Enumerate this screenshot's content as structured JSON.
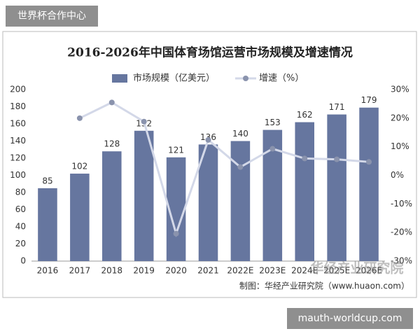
{
  "site_badge": "世界杯合作中心",
  "site_footer": "mauth-worldcup.com",
  "watermark": "华经产业研究院",
  "chart_data": {
    "type": "bar",
    "title": "2016-2026年中国体育场馆运营市场规模及增速情况",
    "source": "制图：华经产业研究院（www.huaon.com）",
    "categories": [
      "2016",
      "2017",
      "2018",
      "2019",
      "2020",
      "2021",
      "2022E",
      "2023E",
      "2024E",
      "2025E",
      "2026E"
    ],
    "series": [
      {
        "name": "市场规模（亿美元）",
        "type": "bar",
        "color": "#66769f",
        "values": [
          85,
          102,
          128,
          152,
          121,
          136,
          140,
          153,
          162,
          171,
          179
        ]
      },
      {
        "name": "增速（%）",
        "type": "line",
        "axis": "y2",
        "color": "#d3d8e8",
        "marker_color": "#8a93ad",
        "values": [
          null,
          20,
          25.5,
          18.8,
          -20.4,
          12.4,
          2.9,
          9.3,
          5.9,
          5.6,
          4.7
        ]
      }
    ],
    "ylim": [
      0,
      200
    ],
    "yticks": [
      0,
      20,
      40,
      60,
      80,
      100,
      120,
      140,
      160,
      180,
      200
    ],
    "y2lim": [
      -30,
      30
    ],
    "y2ticks": [
      {
        "value": -30,
        "label": "-30%"
      },
      {
        "value": -20,
        "label": "-20%"
      },
      {
        "value": -10,
        "label": "-10%"
      },
      {
        "value": 0,
        "label": "0%"
      },
      {
        "value": 10,
        "label": "10%"
      },
      {
        "value": 20,
        "label": "20%"
      },
      {
        "value": 30,
        "label": "30%"
      }
    ],
    "grid": false
  }
}
